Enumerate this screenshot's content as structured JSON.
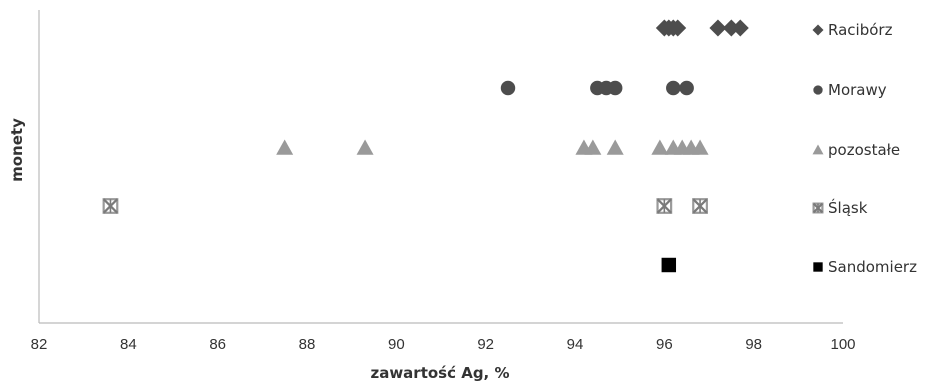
{
  "chart_data": {
    "type": "scatter",
    "title": "",
    "xlabel": "zawartość Ag, %",
    "ylabel": "monety",
    "xlim": [
      82,
      100
    ],
    "x_ticks": [
      "82",
      "84",
      "86",
      "88",
      "90",
      "92",
      "94",
      "96",
      "98",
      "100"
    ],
    "grid": false,
    "legend_position": "right",
    "series": [
      {
        "name": "Racibórz",
        "marker": "diamond",
        "color": "#4d4d4d",
        "values": [
          96.0,
          96.1,
          96.2,
          96.3,
          97.2,
          97.5,
          97.7
        ]
      },
      {
        "name": "Morawy",
        "marker": "circle",
        "color": "#4d4d4d",
        "values": [
          92.5,
          94.5,
          94.7,
          94.9,
          96.2,
          96.5
        ]
      },
      {
        "name": "pozostałe",
        "marker": "triangle",
        "color": "#9a9a9a",
        "values": [
          87.5,
          89.3,
          94.2,
          94.4,
          94.9,
          95.9,
          96.2,
          96.4,
          96.6,
          96.8
        ]
      },
      {
        "name": "Śląsk",
        "marker": "star-square",
        "color": "#9a9a9a",
        "values": [
          83.6,
          96.0,
          96.8
        ]
      },
      {
        "name": "Sandomierz",
        "marker": "square",
        "color": "#000000",
        "values": [
          96.1
        ]
      }
    ]
  }
}
